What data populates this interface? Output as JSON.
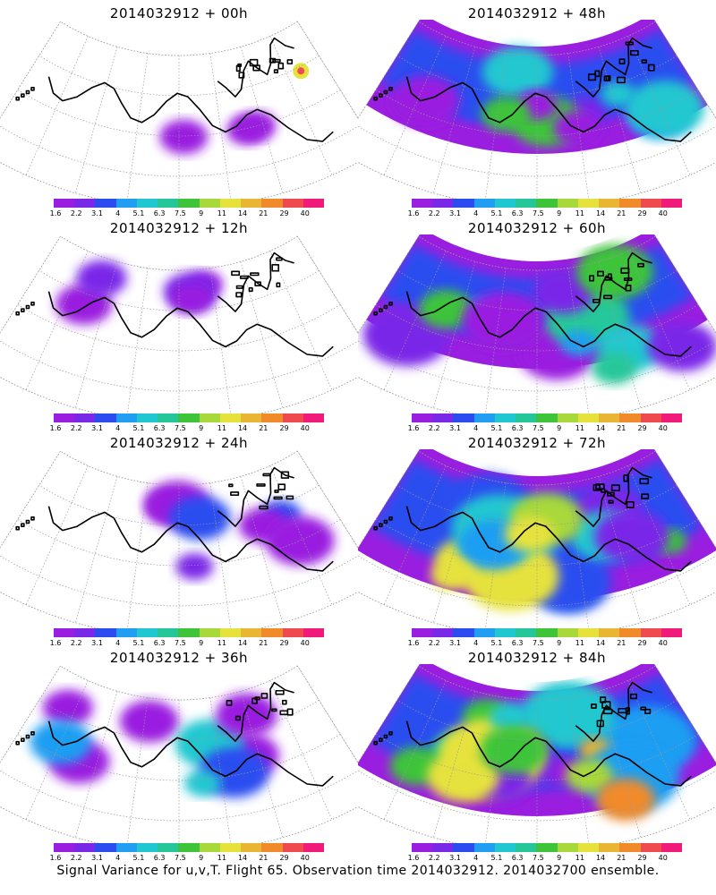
{
  "panels": [
    {
      "title": "2014032912 + 00h",
      "intensity": 0
    },
    {
      "title": "2014032912 + 48h",
      "intensity": 4
    },
    {
      "title": "2014032912 + 12h",
      "intensity": 1
    },
    {
      "title": "2014032912 + 60h",
      "intensity": 5
    },
    {
      "title": "2014032912 + 24h",
      "intensity": 2
    },
    {
      "title": "2014032912 + 72h",
      "intensity": 6
    },
    {
      "title": "2014032912 + 36h",
      "intensity": 3
    },
    {
      "title": "2014032912 + 84h",
      "intensity": 7
    }
  ],
  "colorbar": {
    "labels": [
      "1.6",
      "2.2",
      "3.1",
      "4",
      "5.1",
      "6.3",
      "7.5",
      "9",
      "11",
      "14",
      "21",
      "29",
      "40"
    ],
    "colors": [
      "#9a1ee0",
      "#7a28e8",
      "#2b4df0",
      "#1f9ef2",
      "#20c7d0",
      "#25c79a",
      "#3ec43b",
      "#a8d83a",
      "#e6e23c",
      "#e8b632",
      "#f08a2a",
      "#f04a50",
      "#f01a7a"
    ]
  },
  "footer": "Signal Variance for u,v,T. Flight 65. Observation time 2014032912. 2014032700 ensemble."
}
